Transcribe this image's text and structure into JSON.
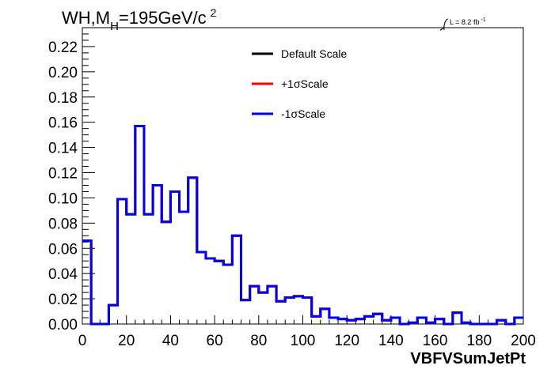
{
  "chart_data": {
    "type": "line",
    "title_main": "WH,M",
    "title_sub": "H",
    "title_tail": "=195GeV/c",
    "title_sup": "2",
    "lumi_prefix": "L = 8.2 fb",
    "lumi_sup": "-1",
    "xlabel": "VBFVSumJetPt",
    "ylabel": "",
    "xlim": [
      0,
      200
    ],
    "ylim": [
      0,
      0.235
    ],
    "xticks": [
      "0",
      "20",
      "40",
      "60",
      "80",
      "100",
      "120",
      "140",
      "160",
      "180",
      "200"
    ],
    "yticks": [
      "0.00",
      "0.02",
      "0.04",
      "0.06",
      "0.08",
      "0.10",
      "0.12",
      "0.14",
      "0.16",
      "0.18",
      "0.20",
      "0.22"
    ],
    "grid": false,
    "legend_placement": "top-center",
    "bin_width": 4,
    "series": [
      {
        "name": "Default Scale",
        "color": "#000000",
        "values": [
          0.066,
          0.0,
          0.0,
          0.015,
          0.099,
          0.087,
          0.157,
          0.087,
          0.11,
          0.081,
          0.105,
          0.089,
          0.116,
          0.057,
          0.052,
          0.05,
          0.047,
          0.07,
          0.019,
          0.03,
          0.025,
          0.03,
          0.018,
          0.021,
          0.022,
          0.021,
          0.006,
          0.012,
          0.005,
          0.004,
          0.003,
          0.004,
          0.006,
          0.008,
          0.003,
          0.005,
          0.0,
          0.001,
          0.005,
          0.001,
          0.004,
          0.0,
          0.009,
          0.001,
          0.0,
          0.0,
          0.0,
          0.003,
          0.0,
          0.005
        ]
      },
      {
        "name": "+1σScale",
        "color": "#ff0000",
        "values": [
          0.066,
          0.0,
          0.0,
          0.015,
          0.099,
          0.087,
          0.157,
          0.087,
          0.11,
          0.081,
          0.105,
          0.089,
          0.116,
          0.057,
          0.052,
          0.05,
          0.047,
          0.07,
          0.019,
          0.03,
          0.025,
          0.03,
          0.018,
          0.021,
          0.022,
          0.021,
          0.006,
          0.012,
          0.005,
          0.004,
          0.003,
          0.004,
          0.006,
          0.008,
          0.003,
          0.005,
          0.0,
          0.001,
          0.005,
          0.001,
          0.004,
          0.0,
          0.009,
          0.001,
          0.0,
          0.0,
          0.0,
          0.003,
          0.0,
          0.005
        ]
      },
      {
        "name": "-1σScale",
        "color": "#0000ee",
        "values": [
          0.066,
          0.0,
          0.0,
          0.015,
          0.099,
          0.087,
          0.157,
          0.087,
          0.11,
          0.081,
          0.105,
          0.089,
          0.116,
          0.057,
          0.052,
          0.05,
          0.047,
          0.07,
          0.019,
          0.03,
          0.025,
          0.03,
          0.018,
          0.021,
          0.022,
          0.021,
          0.006,
          0.012,
          0.005,
          0.004,
          0.003,
          0.004,
          0.006,
          0.008,
          0.003,
          0.005,
          0.0,
          0.001,
          0.005,
          0.001,
          0.004,
          0.0,
          0.009,
          0.001,
          0.0,
          0.0,
          0.0,
          0.003,
          0.0,
          0.005
        ]
      }
    ]
  }
}
